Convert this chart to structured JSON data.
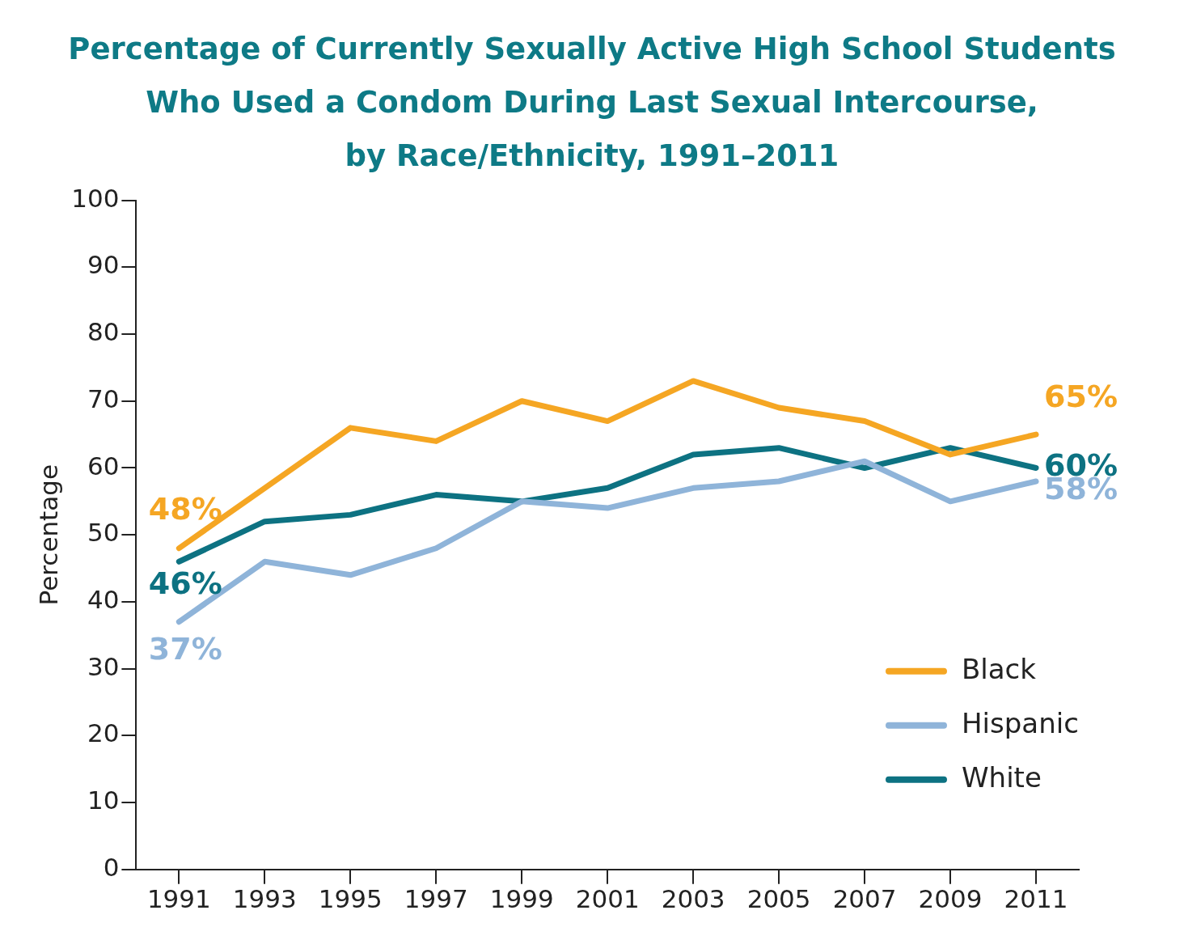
{
  "chart_data": {
    "type": "line",
    "title": "Percentage of Currently Sexually Active High School Students\nWho Used a Condom During Last Sexual Intercourse,\nby Race/Ethnicity, 1991–2011",
    "ylabel": "Percentage",
    "categories": [
      "1991",
      "1993",
      "1995",
      "1997",
      "1999",
      "2001",
      "2003",
      "2005",
      "2007",
      "2009",
      "2011"
    ],
    "series": [
      {
        "name": "Black",
        "color": "#f5a623",
        "values": [
          48,
          57,
          66,
          64,
          70,
          67,
          73,
          69,
          67,
          62,
          65
        ],
        "value_labels": [
          "48%",
          null,
          null,
          null,
          null,
          null,
          null,
          null,
          null,
          null,
          "65%"
        ]
      },
      {
        "name": "Hispanic",
        "color": "#8fb4d9",
        "values": [
          37,
          46,
          44,
          48,
          55,
          54,
          57,
          58,
          61,
          55,
          58
        ],
        "value_labels": [
          "37%",
          null,
          null,
          null,
          null,
          null,
          null,
          null,
          null,
          null,
          "58%"
        ]
      },
      {
        "name": "White",
        "color": "#0d7282",
        "values": [
          46,
          52,
          53,
          56,
          55,
          57,
          62,
          63,
          60,
          63,
          60
        ],
        "value_labels": [
          "46%",
          null,
          null,
          null,
          null,
          null,
          null,
          null,
          null,
          null,
          "60%"
        ]
      }
    ],
    "ylim": [
      0,
      100
    ],
    "yticks": [
      0,
      10,
      20,
      30,
      40,
      50,
      60,
      70,
      80,
      90,
      100
    ],
    "grid": false,
    "legend": "bottom right",
    "marker": "none",
    "line_style": "solid"
  }
}
